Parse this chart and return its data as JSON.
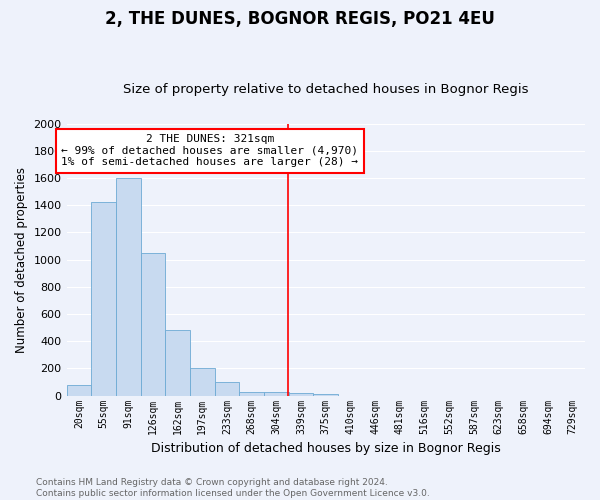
{
  "title": "2, THE DUNES, BOGNOR REGIS, PO21 4EU",
  "subtitle": "Size of property relative to detached houses in Bognor Regis",
  "xlabel": "Distribution of detached houses by size in Bognor Regis",
  "ylabel": "Number of detached properties",
  "bin_labels": [
    "20sqm",
    "55sqm",
    "91sqm",
    "126sqm",
    "162sqm",
    "197sqm",
    "233sqm",
    "268sqm",
    "304sqm",
    "339sqm",
    "375sqm",
    "410sqm",
    "446sqm",
    "481sqm",
    "516sqm",
    "552sqm",
    "587sqm",
    "623sqm",
    "658sqm",
    "694sqm",
    "729sqm"
  ],
  "bar_values": [
    80,
    1420,
    1600,
    1050,
    480,
    200,
    100,
    30,
    30,
    20,
    15,
    0,
    0,
    0,
    0,
    0,
    0,
    0,
    0,
    0,
    0
  ],
  "bar_color": "#c8daf0",
  "bar_edge_color": "#6daad4",
  "ylim": [
    0,
    2000
  ],
  "yticks": [
    0,
    200,
    400,
    600,
    800,
    1000,
    1200,
    1400,
    1600,
    1800,
    2000
  ],
  "annotation_title": "2 THE DUNES: 321sqm",
  "annotation_line1": "← 99% of detached houses are smaller (4,970)",
  "annotation_line2": "1% of semi-detached houses are larger (28) →",
  "footer_line1": "Contains HM Land Registry data © Crown copyright and database right 2024.",
  "footer_line2": "Contains public sector information licensed under the Open Government Licence v3.0.",
  "background_color": "#eef2fb",
  "grid_color": "#ffffff",
  "title_fontsize": 12,
  "subtitle_fontsize": 9.5,
  "xlabel_fontsize": 9,
  "ylabel_fontsize": 8.5,
  "tick_fontsize": 7,
  "ann_fontsize": 8,
  "footer_fontsize": 6.5
}
